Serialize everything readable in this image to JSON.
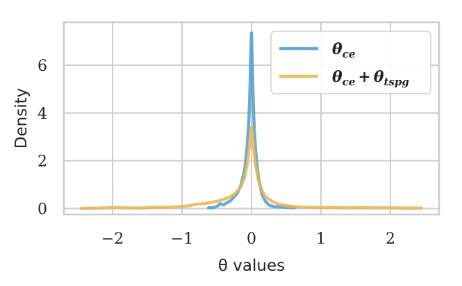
{
  "chart_data": {
    "type": "line",
    "xlabel": "θ values",
    "ylabel": "Density",
    "xlim": [
      -2.7,
      2.7
    ],
    "ylim": [
      -0.25,
      7.8
    ],
    "xticks": [
      -2,
      -1,
      0,
      1,
      2
    ],
    "xtick_labels": [
      "−2",
      "−1",
      "0",
      "1",
      "2"
    ],
    "yticks": [
      0,
      2,
      4,
      6
    ],
    "ytick_labels": [
      "0",
      "2",
      "4",
      "6"
    ],
    "grid": true,
    "legend_position": "top-right",
    "series": [
      {
        "name": "θce",
        "legend_main": "θ",
        "legend_sub": "ce",
        "color": "#4f9cc9",
        "x": [
          -0.62,
          -0.55,
          -0.5,
          -0.45,
          -0.4,
          -0.35,
          -0.3,
          -0.25,
          -0.2,
          -0.15,
          -0.1,
          -0.08,
          -0.06,
          -0.04,
          -0.03,
          -0.02,
          -0.01,
          0.0,
          0.01,
          0.02,
          0.03,
          0.04,
          0.06,
          0.08,
          0.1,
          0.15,
          0.2,
          0.25,
          0.3,
          0.35,
          0.4,
          0.5,
          0.55,
          0.62
        ],
        "y": [
          0.03,
          0.04,
          0.08,
          0.2,
          0.15,
          0.25,
          0.33,
          0.5,
          0.65,
          1.0,
          1.6,
          2.1,
          2.7,
          3.6,
          4.3,
          5.2,
          6.5,
          7.35,
          6.3,
          5.0,
          4.1,
          3.3,
          2.4,
          1.8,
          1.3,
          0.6,
          0.3,
          0.15,
          0.1,
          0.07,
          0.07,
          0.05,
          0.05,
          0.03
        ]
      },
      {
        "name": "θce + θtspg",
        "legend_main": "θ",
        "legend_sub": "ce",
        "legend_plus": "+",
        "legend_main2": "θ",
        "legend_sub2": "tspg",
        "color": "#e8b455",
        "x": [
          -2.45,
          -2.2,
          -2.0,
          -1.8,
          -1.6,
          -1.4,
          -1.2,
          -1.0,
          -0.9,
          -0.8,
          -0.7,
          -0.6,
          -0.5,
          -0.4,
          -0.3,
          -0.2,
          -0.15,
          -0.1,
          -0.06,
          -0.04,
          -0.02,
          0.0,
          0.02,
          0.04,
          0.06,
          0.1,
          0.15,
          0.2,
          0.3,
          0.4,
          0.5,
          0.6,
          0.7,
          0.8,
          1.0,
          1.2,
          1.4,
          1.6,
          1.8,
          2.0,
          2.2,
          2.45
        ],
        "y": [
          0.01,
          0.02,
          0.04,
          0.03,
          0.02,
          0.05,
          0.05,
          0.08,
          0.12,
          0.18,
          0.2,
          0.25,
          0.3,
          0.38,
          0.5,
          0.72,
          0.95,
          1.3,
          1.9,
          2.4,
          2.9,
          3.4,
          2.9,
          2.3,
          1.8,
          1.2,
          0.75,
          0.5,
          0.3,
          0.18,
          0.12,
          0.08,
          0.06,
          0.05,
          0.04,
          0.04,
          0.03,
          0.04,
          0.03,
          0.03,
          0.02,
          0.02
        ]
      }
    ]
  }
}
